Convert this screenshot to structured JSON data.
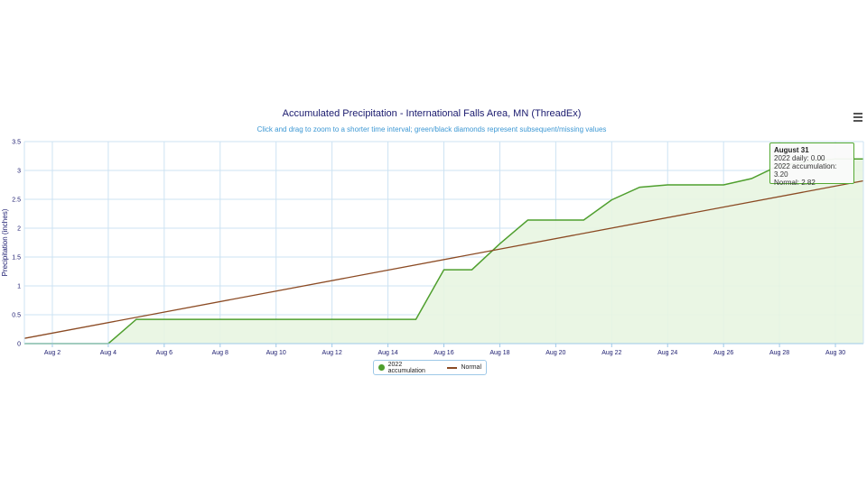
{
  "chart_data": {
    "type": "area",
    "title": "Accumulated Precipitation - International Falls Area, MN (ThreadEx)",
    "subtitle": "Click and drag to zoom to a shorter time interval; green/black diamonds represent subsequent/missing values",
    "ylabel": "Precipitation (inches)",
    "xlabel": "",
    "ylim": [
      0,
      3.5
    ],
    "xlim": [
      1,
      31
    ],
    "grid": true,
    "legend_position": "bottom-center",
    "x_ticks": [
      2,
      4,
      6,
      8,
      10,
      12,
      14,
      16,
      18,
      20,
      22,
      24,
      26,
      28,
      30
    ],
    "x_tick_labels": [
      "Aug 2",
      "Aug 4",
      "Aug 6",
      "Aug 8",
      "Aug 10",
      "Aug 12",
      "Aug 14",
      "Aug 16",
      "Aug 18",
      "Aug 20",
      "Aug 22",
      "Aug 24",
      "Aug 26",
      "Aug 28",
      "Aug 30"
    ],
    "y_ticks": [
      0,
      0.5,
      1,
      1.5,
      2,
      2.5,
      3,
      3.5
    ],
    "y_tick_labels": [
      "0",
      "0.5",
      "1",
      "1.5",
      "2",
      "2.5",
      "3",
      "3.5"
    ],
    "series": [
      {
        "name": "2022 accumulation",
        "color": "#4f9f2e",
        "x": [
          1,
          2,
          3,
          4,
          5,
          6,
          7,
          8,
          9,
          10,
          11,
          12,
          13,
          14,
          15,
          16,
          17,
          18,
          19,
          20,
          21,
          22,
          23,
          24,
          25,
          26,
          27,
          28,
          29,
          30,
          31
        ],
        "values": [
          0,
          0,
          0,
          0,
          0.42,
          0.42,
          0.42,
          0.42,
          0.42,
          0.42,
          0.42,
          0.42,
          0.42,
          0.42,
          0.42,
          1.28,
          1.28,
          1.73,
          2.14,
          2.14,
          2.14,
          2.49,
          2.71,
          2.75,
          2.75,
          2.75,
          2.86,
          3.09,
          3.15,
          3.2,
          3.2
        ]
      },
      {
        "name": "Normal",
        "color": "#8b4a23",
        "x": [
          1,
          31
        ],
        "values": [
          0.09,
          2.82
        ]
      }
    ]
  },
  "tooltip": {
    "title": "August 31",
    "daily": "2022 daily: 0.00",
    "accumulation": "2022 accumulation: 3.20",
    "normal": "Normal: 2.82"
  },
  "legend": {
    "items": [
      "2022 accumulation",
      "Normal"
    ]
  },
  "colors": {
    "accumulation": "#4f9f2e",
    "accumulation_fill": "#e8f5e1",
    "normal": "#8b4a23",
    "grid": "#cde3f3"
  },
  "menu_icon": "hamburger-menu-icon"
}
